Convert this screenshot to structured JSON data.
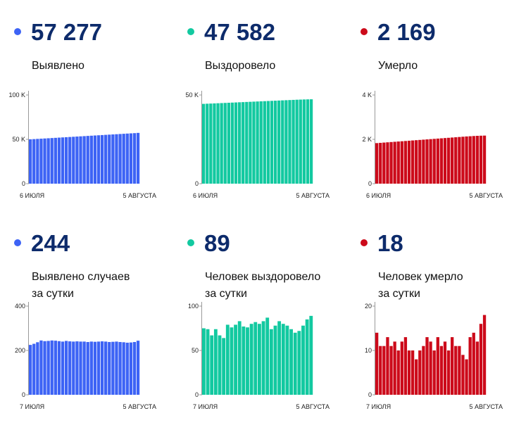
{
  "colors": {
    "blue": "#3d63f5",
    "green": "#12c9a0",
    "red": "#cc0a1a",
    "number": "#0d2b6b"
  },
  "panels": [
    {
      "value": "57 277",
      "label1": "Выявлено",
      "label2": "",
      "color": "#3d63f5"
    },
    {
      "value": "47 582",
      "label1": "Выздоровело",
      "label2": "",
      "color": "#12c9a0"
    },
    {
      "value": "2 169",
      "label1": "Умерло",
      "label2": "",
      "color": "#cc0a1a"
    },
    {
      "value": "244",
      "label1": "Выявлено случаев",
      "label2": "за сутки",
      "color": "#3d63f5"
    },
    {
      "value": "89",
      "label1": "Человек выздоровело",
      "label2": "за сутки",
      "color": "#12c9a0"
    },
    {
      "value": "18",
      "label1": "Человек умерло",
      "label2": "за сутки",
      "color": "#cc0a1a"
    }
  ],
  "chart_data": [
    {
      "type": "bar",
      "title": "Выявлено",
      "color": "#3d63f5",
      "ylim": [
        0,
        100000
      ],
      "yticks": [
        0,
        50000,
        100000
      ],
      "ytick_labels": [
        "0",
        "50 K",
        "100 K"
      ],
      "x_start_label": "6 ИЮЛЯ",
      "x_end_label": "5 АВГУСТА",
      "values": [
        50020,
        50260,
        50500,
        50740,
        50980,
        51220,
        51460,
        51700,
        51940,
        52180,
        52420,
        52660,
        52900,
        53140,
        53380,
        53620,
        53860,
        54100,
        54340,
        54580,
        54820,
        55060,
        55300,
        55540,
        55780,
        56020,
        56260,
        56500,
        56740,
        56980,
        57277
      ]
    },
    {
      "type": "bar",
      "title": "Выздоровело",
      "color": "#12c9a0",
      "ylim": [
        0,
        50000
      ],
      "yticks": [
        0,
        50000
      ],
      "ytick_labels": [
        "0",
        "50 K"
      ],
      "x_start_label": "6 ИЮЛЯ",
      "x_end_label": "5 АВГУСТА",
      "values": [
        45000,
        45090,
        45180,
        45270,
        45360,
        45450,
        45540,
        45630,
        45720,
        45810,
        45900,
        45990,
        46080,
        46170,
        46260,
        46350,
        46440,
        46530,
        46620,
        46710,
        46800,
        46890,
        46980,
        47070,
        47160,
        47250,
        47340,
        47410,
        47480,
        47540,
        47582
      ]
    },
    {
      "type": "bar",
      "title": "Умерло",
      "color": "#cc0a1a",
      "ylim": [
        0,
        4000
      ],
      "yticks": [
        0,
        2000,
        4000
      ],
      "ytick_labels": [
        "0",
        "2 K",
        "4 K"
      ],
      "x_start_label": "6 ИЮЛЯ",
      "x_end_label": "5 АВГУСТА",
      "values": [
        1830,
        1842,
        1854,
        1866,
        1878,
        1890,
        1902,
        1914,
        1926,
        1938,
        1950,
        1962,
        1974,
        1986,
        1998,
        2010,
        2022,
        2034,
        2046,
        2058,
        2070,
        2082,
        2094,
        2106,
        2118,
        2130,
        2140,
        2150,
        2158,
        2164,
        2169
      ]
    },
    {
      "type": "bar",
      "title": "Выявлено случаев за сутки",
      "color": "#3d63f5",
      "ylim": [
        0,
        400
      ],
      "yticks": [
        0,
        200,
        400
      ],
      "ytick_labels": [
        "0",
        "200",
        "400"
      ],
      "x_start_label": "7 ИЮЛЯ",
      "x_end_label": "5 АВГУСТА",
      "values": [
        225,
        230,
        237,
        245,
        242,
        243,
        245,
        244,
        242,
        240,
        243,
        241,
        240,
        241,
        240,
        240,
        238,
        240,
        239,
        240,
        241,
        240,
        238,
        239,
        240,
        238,
        237,
        235,
        236,
        238,
        244
      ]
    },
    {
      "type": "bar",
      "title": "Человек выздоровело за сутки",
      "color": "#12c9a0",
      "ylim": [
        0,
        100
      ],
      "yticks": [
        0,
        50,
        100
      ],
      "ytick_labels": [
        "0",
        "50",
        "100"
      ],
      "x_start_label": "7 ИЮЛЯ",
      "x_end_label": "5 АВГУСТА",
      "values": [
        75,
        74,
        67,
        74,
        67,
        64,
        79,
        76,
        79,
        83,
        77,
        76,
        80,
        82,
        80,
        83,
        87,
        74,
        78,
        83,
        80,
        78,
        74,
        70,
        72,
        78,
        85,
        89
      ]
    },
    {
      "type": "bar",
      "title": "Человек умерло за сутки",
      "color": "#cc0a1a",
      "ylim": [
        0,
        20
      ],
      "yticks": [
        0,
        10,
        20
      ],
      "ytick_labels": [
        "0",
        "10",
        "20"
      ],
      "x_start_label": "7 ИЮЛЯ",
      "x_end_label": "5 АВГУСТА",
      "values": [
        14,
        11,
        11,
        13,
        11,
        12,
        10,
        12,
        13,
        10,
        10,
        8,
        10,
        11,
        13,
        12,
        10,
        13,
        11,
        12,
        10,
        13,
        11,
        11,
        9,
        8,
        13,
        14,
        12,
        16,
        18
      ]
    }
  ]
}
